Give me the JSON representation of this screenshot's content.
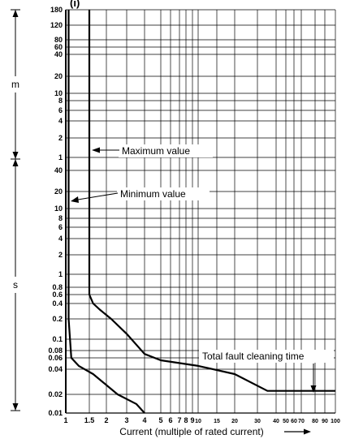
{
  "chart_data": {
    "type": "line",
    "title": "(i)",
    "xlabel": "Current (multiple of rated current)",
    "x_scale": "log",
    "y_scale": "log",
    "xlim": [
      1,
      100
    ],
    "ylim": [
      0.01,
      10800
    ],
    "x_ticks": [
      {
        "value": 1,
        "label": "1"
      },
      {
        "value": 1.5,
        "label": "1.5"
      },
      {
        "value": 2,
        "label": "2"
      },
      {
        "value": 3,
        "label": "3"
      },
      {
        "value": 4,
        "label": "4"
      },
      {
        "value": 5,
        "label": "5"
      },
      {
        "value": 6,
        "label": "6"
      },
      {
        "value": 7,
        "label": "7"
      },
      {
        "value": 8,
        "label": "8"
      },
      {
        "value": 9,
        "label": "9"
      },
      {
        "value": 10,
        "label": "10"
      },
      {
        "value": 15,
        "label": "15"
      },
      {
        "value": 20,
        "label": "20"
      },
      {
        "value": 30,
        "label": "30"
      },
      {
        "value": 40,
        "label": "40"
      },
      {
        "value": 50,
        "label": "50"
      },
      {
        "value": 60,
        "label": "60"
      },
      {
        "value": 70,
        "label": "70"
      },
      {
        "value": 80,
        "label": "80"
      },
      {
        "value": 90,
        "label": "90"
      },
      {
        "value": 100,
        "label": "100"
      }
    ],
    "y_ticks_seconds": [
      {
        "value": 0.01,
        "label": "0.01"
      },
      {
        "value": 0.02,
        "label": "0.02"
      },
      {
        "value": 0.04,
        "label": "0.04"
      },
      {
        "value": 0.06,
        "label": "0.06"
      },
      {
        "value": 0.08,
        "label": "0.08"
      },
      {
        "value": 0.1,
        "label": "0.1"
      },
      {
        "value": 0.2,
        "label": "0.2"
      },
      {
        "value": 0.4,
        "label": "0.4"
      },
      {
        "value": 0.6,
        "label": "0.6"
      },
      {
        "value": 0.8,
        "label": "0.8"
      },
      {
        "value": 1,
        "label": "1"
      },
      {
        "value": 2,
        "label": "2"
      },
      {
        "value": 4,
        "label": "4"
      },
      {
        "value": 6,
        "label": "6"
      },
      {
        "value": 8,
        "label": "8"
      },
      {
        "value": 10,
        "label": "10"
      },
      {
        "value": 20,
        "label": "20"
      },
      {
        "value": 40,
        "label": "40"
      }
    ],
    "y_ticks_minutes": [
      {
        "value": 1,
        "label": "1"
      },
      {
        "value": 2,
        "label": "2"
      },
      {
        "value": 4,
        "label": "4"
      },
      {
        "value": 6,
        "label": "6"
      },
      {
        "value": 8,
        "label": "8"
      },
      {
        "value": 10,
        "label": "10"
      },
      {
        "value": 20,
        "label": "20"
      },
      {
        "value": 40,
        "label": "40"
      },
      {
        "value": 60,
        "label": "60"
      },
      {
        "value": 80,
        "label": "80"
      },
      {
        "value": 120,
        "label": "120"
      },
      {
        "value": 180,
        "label": "180"
      }
    ],
    "unit_labels": {
      "minutes": "m",
      "seconds": "s"
    },
    "series": [
      {
        "name": "Maximum value",
        "points": [
          [
            1.5,
            10800
          ],
          [
            1.5,
            2
          ],
          [
            1.5,
            1
          ],
          [
            1.5,
            0.6
          ],
          [
            1.6,
            0.4
          ],
          [
            1.8,
            0.3
          ],
          [
            2.2,
            0.2
          ],
          [
            3,
            0.12
          ],
          [
            4,
            0.07
          ],
          [
            5,
            0.055
          ],
          [
            10,
            0.045
          ],
          [
            20,
            0.035
          ],
          [
            35,
            0.022
          ],
          [
            100,
            0.022
          ]
        ]
      },
      {
        "name": "Minimum value",
        "points": [
          [
            1.05,
            10800
          ],
          [
            1.05,
            1
          ],
          [
            1.05,
            0.2
          ],
          [
            1.1,
            0.06
          ],
          [
            1.25,
            0.045
          ],
          [
            1.6,
            0.035
          ],
          [
            2.5,
            0.02
          ],
          [
            3.5,
            0.014
          ],
          [
            4,
            0.01
          ]
        ]
      }
    ],
    "annotations": [
      {
        "text": "Maximum value"
      },
      {
        "text": "Minimum value"
      },
      {
        "text": "Total fault cleaning time"
      }
    ],
    "grid": true
  }
}
